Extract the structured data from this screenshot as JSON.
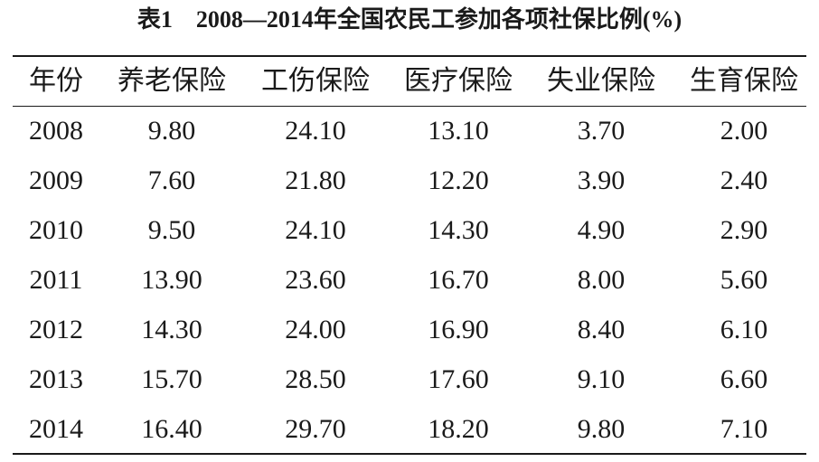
{
  "title": "表1　2008—2014年全国农民工参加各项社保比例(%)",
  "table": {
    "header": [
      "年份",
      "养老保险",
      "工伤保险",
      "医疗保险",
      "失业保险",
      "生育保险"
    ],
    "rows": [
      [
        "2008",
        "9.80",
        "24.10",
        "13.10",
        "3.70",
        "2.00"
      ],
      [
        "2009",
        "7.60",
        "21.80",
        "12.20",
        "3.90",
        "2.40"
      ],
      [
        "2010",
        "9.50",
        "24.10",
        "14.30",
        "4.90",
        "2.90"
      ],
      [
        "2011",
        "13.90",
        "23.60",
        "16.70",
        "8.00",
        "5.60"
      ],
      [
        "2012",
        "14.30",
        "24.00",
        "16.90",
        "8.40",
        "6.10"
      ],
      [
        "2013",
        "15.70",
        "28.50",
        "17.60",
        "9.10",
        "6.60"
      ],
      [
        "2014",
        "16.40",
        "29.70",
        "18.20",
        "9.80",
        "7.10"
      ]
    ]
  }
}
